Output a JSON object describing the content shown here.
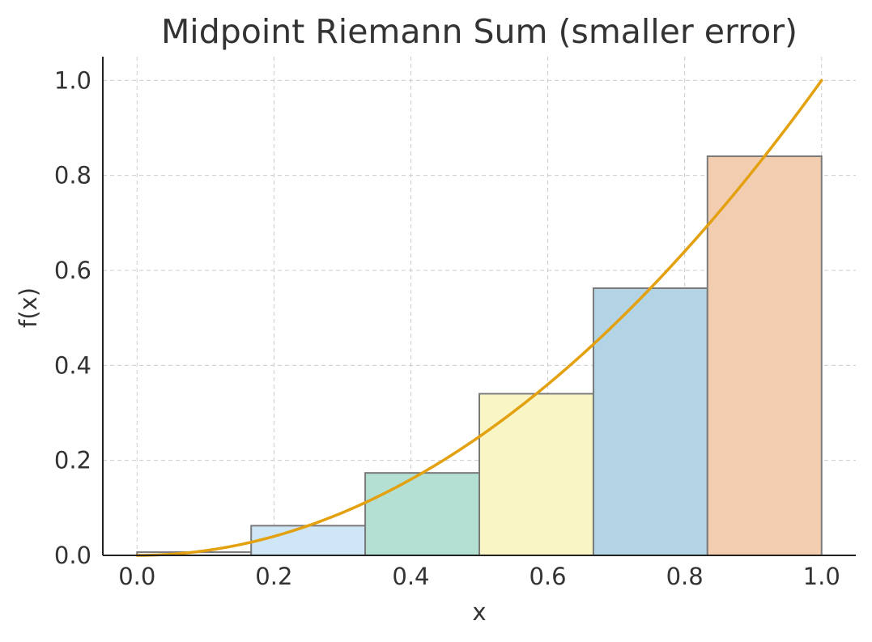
{
  "chart_data": {
    "type": "bar",
    "title": "Midpoint Riemann Sum (smaller error)",
    "xlabel": "x",
    "ylabel": "f(x)",
    "xlim": [
      -0.05,
      1.05
    ],
    "ylim": [
      0,
      1.05
    ],
    "xticks": [
      "0.0",
      "0.2",
      "0.4",
      "0.6",
      "0.8",
      "1.0"
    ],
    "yticks": [
      "0.0",
      "0.2",
      "0.4",
      "0.6",
      "0.8",
      "1.0"
    ],
    "grid": true,
    "bars": [
      {
        "x0": 0.0,
        "x1": 0.1667,
        "height": 0.0069,
        "color": "#f2f2f2"
      },
      {
        "x0": 0.1667,
        "x1": 0.3333,
        "height": 0.0625,
        "color": "#cfe6f7"
      },
      {
        "x0": 0.3333,
        "x1": 0.5,
        "height": 0.1736,
        "color": "#b3e0d3"
      },
      {
        "x0": 0.5,
        "x1": 0.6667,
        "height": 0.3403,
        "color": "#faf5c5"
      },
      {
        "x0": 0.6667,
        "x1": 0.8333,
        "height": 0.5625,
        "color": "#b2d4e5"
      },
      {
        "x0": 0.8333,
        "x1": 1.0,
        "height": 0.8403,
        "color": "#f2cdb0"
      }
    ],
    "curve": {
      "function": "x^2",
      "domain": [
        0,
        1
      ],
      "color": "#e3a00f"
    },
    "colors": {
      "text": "#333333",
      "axis": "#222222",
      "grid": "#cccccc",
      "bar_edge": "#7a7a7a"
    }
  }
}
